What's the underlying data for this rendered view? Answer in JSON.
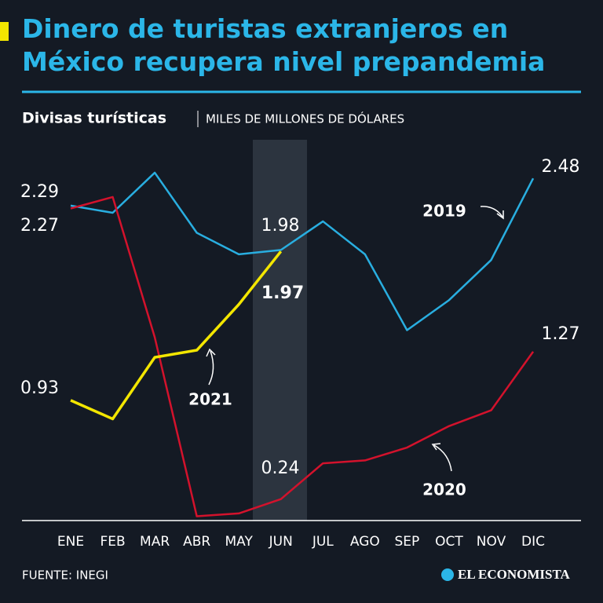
{
  "chart_data": {
    "type": "line",
    "title": "Dinero de turistas extranjeros en México recupera nivel prepandemia",
    "subtitle": "Divisas turísticas",
    "y_label": "MILES DE MILLONES DE DÓLARES",
    "source": "FUENTE: INEGI",
    "brand": "EL ECONOMISTA",
    "categories": [
      "ENE",
      "FEB",
      "MAR",
      "ABR",
      "MAY",
      "JUN",
      "JUL",
      "AGO",
      "SEP",
      "OCT",
      "NOV",
      "DIC"
    ],
    "ylim": [
      0.09,
      2.75
    ],
    "series": [
      {
        "name": "2019",
        "color": "#29aee0",
        "values": [
          2.29,
          2.24,
          2.52,
          2.1,
          1.95,
          1.98,
          2.18,
          1.95,
          1.42,
          1.63,
          1.91,
          2.48
        ]
      },
      {
        "name": "2020",
        "color": "#d3122c",
        "values": [
          2.27,
          2.35,
          1.37,
          0.12,
          0.14,
          0.24,
          0.49,
          0.51,
          0.6,
          0.75,
          0.86,
          1.27
        ]
      },
      {
        "name": "2021",
        "color": "#f3e600",
        "values": [
          0.93,
          0.8,
          1.23,
          1.28,
          1.6,
          1.97,
          null,
          null,
          null,
          null,
          null,
          null
        ]
      }
    ]
  }
}
